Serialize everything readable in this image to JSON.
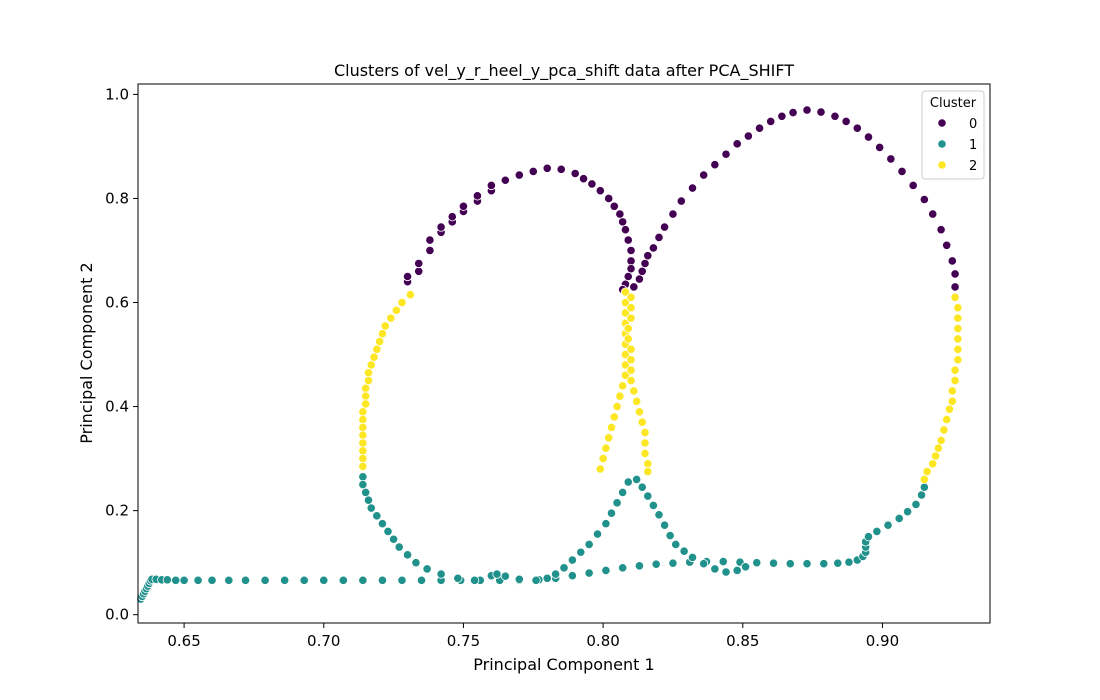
{
  "chart_data": {
    "type": "scatter",
    "title": "Clusters of vel_y_r_heel_y_pca_shift data after PCA_SHIFT",
    "xlabel": "Principal Component 1",
    "ylabel": "Principal Component 2",
    "xlim": [
      0.6335,
      0.9385
    ],
    "ylim": [
      -0.016,
      1.02
    ],
    "xticks": [
      "0.65",
      "0.70",
      "0.75",
      "0.80",
      "0.85",
      "0.90"
    ],
    "xtick_values": [
      0.65,
      0.7,
      0.75,
      0.8,
      0.85,
      0.9
    ],
    "yticks": [
      "0.0",
      "0.2",
      "0.4",
      "0.6",
      "0.8",
      "1.0"
    ],
    "ytick_values": [
      0.0,
      0.2,
      0.4,
      0.6,
      0.8,
      1.0
    ],
    "grid": false,
    "legend": {
      "title": "Cluster",
      "position": "top-right",
      "entries": [
        "0",
        "1",
        "2"
      ]
    },
    "colors": {
      "0": "#440154",
      "1": "#21918c",
      "2": "#fde725"
    },
    "series": [
      {
        "name": "0",
        "points": [
          [
            0.73,
            0.64
          ],
          [
            0.73,
            0.65
          ],
          [
            0.734,
            0.66
          ],
          [
            0.734,
            0.675
          ],
          [
            0.738,
            0.7
          ],
          [
            0.738,
            0.72
          ],
          [
            0.742,
            0.735
          ],
          [
            0.742,
            0.745
          ],
          [
            0.746,
            0.755
          ],
          [
            0.746,
            0.765
          ],
          [
            0.75,
            0.775
          ],
          [
            0.75,
            0.785
          ],
          [
            0.755,
            0.795
          ],
          [
            0.755,
            0.805
          ],
          [
            0.76,
            0.815
          ],
          [
            0.76,
            0.825
          ],
          [
            0.765,
            0.835
          ],
          [
            0.77,
            0.845
          ],
          [
            0.775,
            0.852
          ],
          [
            0.78,
            0.858
          ],
          [
            0.785,
            0.856
          ],
          [
            0.79,
            0.848
          ],
          [
            0.793,
            0.838
          ],
          [
            0.796,
            0.828
          ],
          [
            0.799,
            0.815
          ],
          [
            0.802,
            0.8
          ],
          [
            0.804,
            0.785
          ],
          [
            0.806,
            0.77
          ],
          [
            0.807,
            0.755
          ],
          [
            0.808,
            0.74
          ],
          [
            0.809,
            0.72
          ],
          [
            0.81,
            0.7
          ],
          [
            0.81,
            0.68
          ],
          [
            0.81,
            0.665
          ],
          [
            0.809,
            0.65
          ],
          [
            0.808,
            0.635
          ],
          [
            0.807,
            0.625
          ],
          [
            0.811,
            0.63
          ],
          [
            0.813,
            0.645
          ],
          [
            0.814,
            0.66
          ],
          [
            0.815,
            0.675
          ],
          [
            0.816,
            0.69
          ],
          [
            0.818,
            0.705
          ],
          [
            0.82,
            0.725
          ],
          [
            0.822,
            0.745
          ],
          [
            0.825,
            0.77
          ],
          [
            0.828,
            0.795
          ],
          [
            0.832,
            0.82
          ],
          [
            0.836,
            0.845
          ],
          [
            0.84,
            0.865
          ],
          [
            0.844,
            0.885
          ],
          [
            0.848,
            0.905
          ],
          [
            0.852,
            0.92
          ],
          [
            0.856,
            0.935
          ],
          [
            0.86,
            0.948
          ],
          [
            0.864,
            0.958
          ],
          [
            0.868,
            0.965
          ],
          [
            0.873,
            0.97
          ],
          [
            0.878,
            0.966
          ],
          [
            0.883,
            0.958
          ],
          [
            0.887,
            0.948
          ],
          [
            0.891,
            0.935
          ],
          [
            0.895,
            0.918
          ],
          [
            0.899,
            0.898
          ],
          [
            0.903,
            0.876
          ],
          [
            0.907,
            0.852
          ],
          [
            0.911,
            0.825
          ],
          [
            0.915,
            0.798
          ],
          [
            0.918,
            0.77
          ],
          [
            0.921,
            0.74
          ],
          [
            0.923,
            0.71
          ],
          [
            0.925,
            0.68
          ],
          [
            0.926,
            0.655
          ],
          [
            0.926,
            0.63
          ]
        ]
      },
      {
        "name": "1",
        "points": [
          [
            0.6345,
            0.03
          ],
          [
            0.635,
            0.035
          ],
          [
            0.6355,
            0.04
          ],
          [
            0.636,
            0.045
          ],
          [
            0.6365,
            0.05
          ],
          [
            0.637,
            0.055
          ],
          [
            0.6375,
            0.06
          ],
          [
            0.638,
            0.065
          ],
          [
            0.6385,
            0.068
          ],
          [
            0.64,
            0.068
          ],
          [
            0.642,
            0.067
          ],
          [
            0.644,
            0.067
          ],
          [
            0.647,
            0.066
          ],
          [
            0.65,
            0.066
          ],
          [
            0.655,
            0.066
          ],
          [
            0.66,
            0.066
          ],
          [
            0.666,
            0.066
          ],
          [
            0.672,
            0.066
          ],
          [
            0.679,
            0.066
          ],
          [
            0.686,
            0.066
          ],
          [
            0.693,
            0.066
          ],
          [
            0.7,
            0.066
          ],
          [
            0.707,
            0.066
          ],
          [
            0.714,
            0.066
          ],
          [
            0.721,
            0.066
          ],
          [
            0.728,
            0.066
          ],
          [
            0.735,
            0.066
          ],
          [
            0.742,
            0.066
          ],
          [
            0.749,
            0.066
          ],
          [
            0.756,
            0.066
          ],
          [
            0.763,
            0.066
          ],
          [
            0.77,
            0.066
          ],
          [
            0.777,
            0.067
          ],
          [
            0.783,
            0.07
          ],
          [
            0.789,
            0.075
          ],
          [
            0.795,
            0.08
          ],
          [
            0.801,
            0.085
          ],
          [
            0.807,
            0.09
          ],
          [
            0.813,
            0.094
          ],
          [
            0.819,
            0.097
          ],
          [
            0.825,
            0.099
          ],
          [
            0.831,
            0.101
          ],
          [
            0.837,
            0.102
          ],
          [
            0.843,
            0.102
          ],
          [
            0.849,
            0.101
          ],
          [
            0.855,
            0.1
          ],
          [
            0.861,
            0.099
          ],
          [
            0.867,
            0.098
          ],
          [
            0.873,
            0.098
          ],
          [
            0.879,
            0.098
          ],
          [
            0.884,
            0.099
          ],
          [
            0.888,
            0.101
          ],
          [
            0.891,
            0.105
          ],
          [
            0.893,
            0.112
          ],
          [
            0.894,
            0.12
          ],
          [
            0.894,
            0.13
          ],
          [
            0.894,
            0.14
          ],
          [
            0.895,
            0.15
          ],
          [
            0.898,
            0.16
          ],
          [
            0.902,
            0.172
          ],
          [
            0.906,
            0.185
          ],
          [
            0.909,
            0.198
          ],
          [
            0.912,
            0.212
          ],
          [
            0.914,
            0.23
          ],
          [
            0.915,
            0.245
          ],
          [
            0.714,
            0.265
          ],
          [
            0.714,
            0.25
          ],
          [
            0.715,
            0.235
          ],
          [
            0.716,
            0.22
          ],
          [
            0.717,
            0.205
          ],
          [
            0.719,
            0.19
          ],
          [
            0.721,
            0.175
          ],
          [
            0.723,
            0.16
          ],
          [
            0.725,
            0.145
          ],
          [
            0.727,
            0.13
          ],
          [
            0.73,
            0.115
          ],
          [
            0.733,
            0.1
          ],
          [
            0.737,
            0.088
          ],
          [
            0.742,
            0.078
          ],
          [
            0.748,
            0.07
          ],
          [
            0.754,
            0.066
          ],
          [
            0.76,
            0.075
          ],
          [
            0.762,
            0.078
          ],
          [
            0.765,
            0.074
          ],
          [
            0.77,
            0.068
          ],
          [
            0.776,
            0.066
          ],
          [
            0.78,
            0.07
          ],
          [
            0.783,
            0.078
          ],
          [
            0.786,
            0.09
          ],
          [
            0.789,
            0.105
          ],
          [
            0.792,
            0.12
          ],
          [
            0.795,
            0.135
          ],
          [
            0.798,
            0.155
          ],
          [
            0.801,
            0.175
          ],
          [
            0.803,
            0.195
          ],
          [
            0.805,
            0.215
          ],
          [
            0.807,
            0.235
          ],
          [
            0.809,
            0.255
          ],
          [
            0.812,
            0.26
          ],
          [
            0.814,
            0.245
          ],
          [
            0.816,
            0.228
          ],
          [
            0.818,
            0.21
          ],
          [
            0.82,
            0.192
          ],
          [
            0.822,
            0.172
          ],
          [
            0.824,
            0.152
          ],
          [
            0.826,
            0.135
          ],
          [
            0.829,
            0.122
          ],
          [
            0.832,
            0.11
          ],
          [
            0.836,
            0.098
          ],
          [
            0.84,
            0.088
          ],
          [
            0.844,
            0.082
          ],
          [
            0.848,
            0.085
          ],
          [
            0.851,
            0.092
          ]
        ]
      },
      {
        "name": "2",
        "points": [
          [
            0.731,
            0.615
          ],
          [
            0.728,
            0.6
          ],
          [
            0.726,
            0.585
          ],
          [
            0.724,
            0.57
          ],
          [
            0.722,
            0.555
          ],
          [
            0.721,
            0.54
          ],
          [
            0.72,
            0.525
          ],
          [
            0.719,
            0.51
          ],
          [
            0.718,
            0.495
          ],
          [
            0.717,
            0.48
          ],
          [
            0.716,
            0.465
          ],
          [
            0.716,
            0.45
          ],
          [
            0.715,
            0.435
          ],
          [
            0.715,
            0.42
          ],
          [
            0.715,
            0.405
          ],
          [
            0.714,
            0.39
          ],
          [
            0.714,
            0.375
          ],
          [
            0.714,
            0.36
          ],
          [
            0.714,
            0.345
          ],
          [
            0.714,
            0.33
          ],
          [
            0.714,
            0.315
          ],
          [
            0.714,
            0.3
          ],
          [
            0.714,
            0.285
          ],
          [
            0.808,
            0.62
          ],
          [
            0.808,
            0.6
          ],
          [
            0.808,
            0.58
          ],
          [
            0.808,
            0.56
          ],
          [
            0.808,
            0.54
          ],
          [
            0.808,
            0.52
          ],
          [
            0.808,
            0.5
          ],
          [
            0.808,
            0.48
          ],
          [
            0.808,
            0.46
          ],
          [
            0.807,
            0.44
          ],
          [
            0.806,
            0.42
          ],
          [
            0.805,
            0.4
          ],
          [
            0.804,
            0.38
          ],
          [
            0.803,
            0.36
          ],
          [
            0.802,
            0.34
          ],
          [
            0.801,
            0.32
          ],
          [
            0.8,
            0.3
          ],
          [
            0.799,
            0.28
          ],
          [
            0.81,
            0.61
          ],
          [
            0.81,
            0.59
          ],
          [
            0.81,
            0.57
          ],
          [
            0.809,
            0.55
          ],
          [
            0.809,
            0.53
          ],
          [
            0.81,
            0.51
          ],
          [
            0.81,
            0.49
          ],
          [
            0.81,
            0.47
          ],
          [
            0.81,
            0.45
          ],
          [
            0.811,
            0.43
          ],
          [
            0.812,
            0.41
          ],
          [
            0.813,
            0.39
          ],
          [
            0.814,
            0.37
          ],
          [
            0.815,
            0.35
          ],
          [
            0.815,
            0.33
          ],
          [
            0.815,
            0.31
          ],
          [
            0.816,
            0.29
          ],
          [
            0.816,
            0.275
          ],
          [
            0.926,
            0.61
          ],
          [
            0.927,
            0.59
          ],
          [
            0.927,
            0.57
          ],
          [
            0.927,
            0.55
          ],
          [
            0.927,
            0.53
          ],
          [
            0.927,
            0.51
          ],
          [
            0.927,
            0.49
          ],
          [
            0.926,
            0.47
          ],
          [
            0.926,
            0.45
          ],
          [
            0.925,
            0.43
          ],
          [
            0.925,
            0.41
          ],
          [
            0.924,
            0.395
          ],
          [
            0.923,
            0.375
          ],
          [
            0.922,
            0.355
          ],
          [
            0.921,
            0.335
          ],
          [
            0.92,
            0.32
          ],
          [
            0.919,
            0.305
          ],
          [
            0.918,
            0.29
          ],
          [
            0.916,
            0.275
          ],
          [
            0.915,
            0.26
          ]
        ]
      }
    ]
  }
}
